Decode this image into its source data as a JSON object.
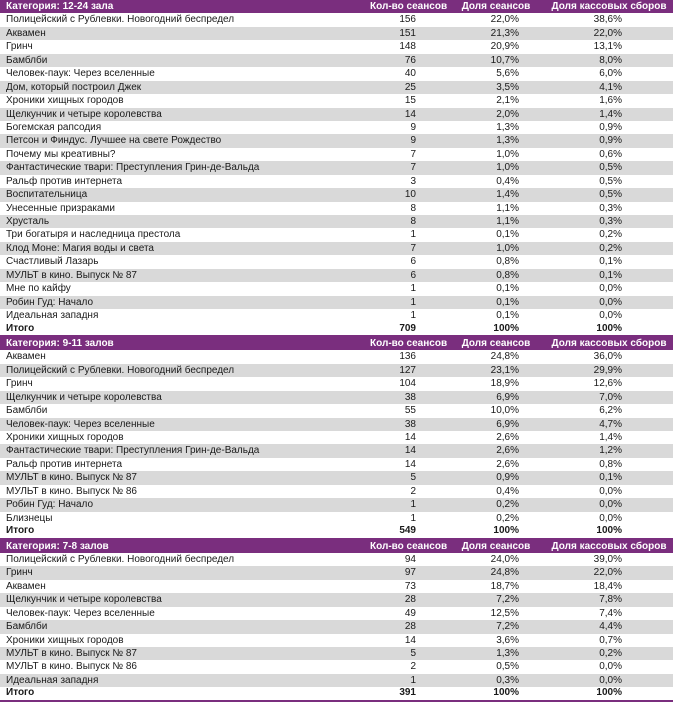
{
  "colors": {
    "header_bg": "#7a2e7e",
    "alt_row_bg": "#d9d9d9"
  },
  "columns": [
    "Кол-во сеансов",
    "Доля сеансов",
    "Доля кассовых сборов"
  ],
  "sections": [
    {
      "title": "Категория: 12-24 зала",
      "rows": [
        [
          "Полицейский с Рублевки. Новогодний беспредел",
          "156",
          "22,0%",
          "38,6%"
        ],
        [
          "Аквамен",
          "151",
          "21,3%",
          "22,0%"
        ],
        [
          "Гринч",
          "148",
          "20,9%",
          "13,1%"
        ],
        [
          "Бамблби",
          "76",
          "10,7%",
          "8,0%"
        ],
        [
          "Человек-паук: Через вселенные",
          "40",
          "5,6%",
          "6,0%"
        ],
        [
          "Дом, который построил Джек",
          "25",
          "3,5%",
          "4,1%"
        ],
        [
          "Хроники хищных городов",
          "15",
          "2,1%",
          "1,6%"
        ],
        [
          "Щелкунчик и четыре королевства",
          "14",
          "2,0%",
          "1,4%"
        ],
        [
          "Богемская рапсодия",
          "9",
          "1,3%",
          "0,9%"
        ],
        [
          "Петсон и Финдус. Лучшее на свете Рождество",
          "9",
          "1,3%",
          "0,9%"
        ],
        [
          "Почему мы креативны?",
          "7",
          "1,0%",
          "0,6%"
        ],
        [
          "Фантастические твари: Преступления Грин-де-Вальда",
          "7",
          "1,0%",
          "0,5%"
        ],
        [
          "Ральф против интернета",
          "3",
          "0,4%",
          "0,5%"
        ],
        [
          "Воспитательница",
          "10",
          "1,4%",
          "0,5%"
        ],
        [
          "Унесенные призраками",
          "8",
          "1,1%",
          "0,3%"
        ],
        [
          "Хрусталь",
          "8",
          "1,1%",
          "0,3%"
        ],
        [
          "Три богатыря и наследница престола",
          "1",
          "0,1%",
          "0,2%"
        ],
        [
          "Клод Моне: Магия воды и света",
          "7",
          "1,0%",
          "0,2%"
        ],
        [
          "Счастливый Лазарь",
          "6",
          "0,8%",
          "0,1%"
        ],
        [
          "МУЛЬТ в кино. Выпуск № 87",
          "6",
          "0,8%",
          "0,1%"
        ],
        [
          "Мне по кайфу",
          "1",
          "0,1%",
          "0,0%"
        ],
        [
          "Робин Гуд: Начало",
          "1",
          "0,1%",
          "0,0%"
        ],
        [
          "Идеальная западня",
          "1",
          "0,1%",
          "0,0%"
        ]
      ],
      "total": [
        "Итого",
        "709",
        "100%",
        "100%"
      ]
    },
    {
      "title": "Категория: 9-11 залов",
      "rows": [
        [
          "Аквамен",
          "136",
          "24,8%",
          "36,0%"
        ],
        [
          "Полицейский с Рублевки. Новогодний беспредел",
          "127",
          "23,1%",
          "29,9%"
        ],
        [
          "Гринч",
          "104",
          "18,9%",
          "12,6%"
        ],
        [
          "Щелкунчик и четыре королевства",
          "38",
          "6,9%",
          "7,0%"
        ],
        [
          "Бамблби",
          "55",
          "10,0%",
          "6,2%"
        ],
        [
          "Человек-паук: Через вселенные",
          "38",
          "6,9%",
          "4,7%"
        ],
        [
          "Хроники хищных городов",
          "14",
          "2,6%",
          "1,4%"
        ],
        [
          "Фантастические твари: Преступления Грин-де-Вальда",
          "14",
          "2,6%",
          "1,2%"
        ],
        [
          "Ральф против интернета",
          "14",
          "2,6%",
          "0,8%"
        ],
        [
          "МУЛЬТ в кино. Выпуск № 87",
          "5",
          "0,9%",
          "0,1%"
        ],
        [
          "МУЛЬТ в кино. Выпуск № 86",
          "2",
          "0,4%",
          "0,0%"
        ],
        [
          "Робин Гуд: Начало",
          "1",
          "0,2%",
          "0,0%"
        ],
        [
          "Близнецы",
          "1",
          "0,2%",
          "0,0%"
        ]
      ],
      "total": [
        "Итого",
        "549",
        "100%",
        "100%"
      ]
    },
    {
      "title": "Категория: 7-8 залов",
      "rows": [
        [
          "Полицейский с Рублевки. Новогодний беспредел",
          "94",
          "24,0%",
          "39,0%"
        ],
        [
          "Гринч",
          "97",
          "24,8%",
          "22,0%"
        ],
        [
          "Аквамен",
          "73",
          "18,7%",
          "18,4%"
        ],
        [
          "Щелкунчик и четыре королевства",
          "28",
          "7,2%",
          "7,8%"
        ],
        [
          "Человек-паук: Через вселенные",
          "49",
          "12,5%",
          "7,4%"
        ],
        [
          "Бамблби",
          "28",
          "7,2%",
          "4,4%"
        ],
        [
          "Хроники хищных городов",
          "14",
          "3,6%",
          "0,7%"
        ],
        [
          "МУЛЬТ в кино. Выпуск № 87",
          "5",
          "1,3%",
          "0,2%"
        ],
        [
          "МУЛЬТ в кино. Выпуск № 86",
          "2",
          "0,5%",
          "0,0%"
        ],
        [
          "Идеальная западня",
          "1",
          "0,3%",
          "0,0%"
        ]
      ],
      "total": [
        "Итого",
        "391",
        "100%",
        "100%"
      ]
    }
  ]
}
